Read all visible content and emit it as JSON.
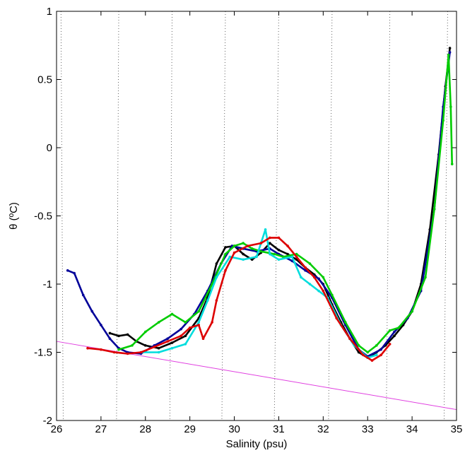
{
  "chart_data": {
    "type": "scatter",
    "title": "",
    "xlabel": "Salinity (psu)",
    "ylabel": "θ (ºC)",
    "xlim": [
      26,
      35
    ],
    "ylim": [
      -2,
      1
    ],
    "grid": "none",
    "x_ticks": [
      26,
      27,
      28,
      29,
      30,
      31,
      32,
      33,
      34,
      35
    ],
    "x_tick_labels": [
      "26",
      "27",
      "28",
      "29",
      "30",
      "31",
      "32",
      "33",
      "34",
      "35"
    ],
    "y_ticks": [
      -2,
      -1.5,
      -1,
      -0.5,
      0,
      0.5,
      1
    ],
    "y_tick_labels": [
      "-2",
      "-1.5",
      "-1",
      "-0.5",
      "0",
      "0.5",
      "1"
    ],
    "freezing_line": {
      "color": "#e040e0",
      "points": [
        [
          26,
          -1.42
        ],
        [
          35,
          -1.92
        ]
      ]
    },
    "isopycnals": {
      "style": "dotted",
      "color": "#555555",
      "lines": [
        [
          [
            26.1,
            1.0
          ],
          [
            26.15,
            -2.0
          ]
        ],
        [
          [
            27.4,
            1.0
          ],
          [
            27.35,
            -2.0
          ]
        ],
        [
          [
            28.6,
            1.0
          ],
          [
            28.55,
            -2.0
          ]
        ],
        [
          [
            29.8,
            1.0
          ],
          [
            29.72,
            -2.0
          ]
        ],
        [
          [
            31.0,
            1.0
          ],
          [
            30.9,
            -2.0
          ]
        ],
        [
          [
            32.2,
            1.0
          ],
          [
            32.12,
            -2.0
          ]
        ],
        [
          [
            33.5,
            1.0
          ],
          [
            33.42,
            -2.0
          ]
        ],
        [
          [
            34.8,
            1.0
          ],
          [
            34.72,
            -2.0
          ]
        ]
      ]
    },
    "series": [
      {
        "color": "#000000",
        "points": [
          [
            27.2,
            -1.36
          ],
          [
            27.4,
            -1.38
          ],
          [
            27.6,
            -1.37
          ],
          [
            27.8,
            -1.42
          ],
          [
            28.0,
            -1.45
          ],
          [
            28.3,
            -1.47
          ],
          [
            28.6,
            -1.43
          ],
          [
            28.9,
            -1.38
          ],
          [
            29.2,
            -1.25
          ],
          [
            29.4,
            -1.1
          ],
          [
            29.6,
            -0.85
          ],
          [
            29.8,
            -0.73
          ],
          [
            30.0,
            -0.72
          ],
          [
            30.2,
            -0.78
          ],
          [
            30.4,
            -0.82
          ],
          [
            30.6,
            -0.77
          ],
          [
            30.8,
            -0.7
          ],
          [
            31.0,
            -0.75
          ],
          [
            31.2,
            -0.78
          ],
          [
            31.4,
            -0.82
          ],
          [
            31.6,
            -0.88
          ],
          [
            31.8,
            -0.93
          ],
          [
            32.0,
            -1.0
          ],
          [
            32.2,
            -1.15
          ],
          [
            32.4,
            -1.28
          ],
          [
            32.6,
            -1.4
          ],
          [
            32.8,
            -1.5
          ],
          [
            33.0,
            -1.54
          ],
          [
            33.2,
            -1.5
          ],
          [
            33.4,
            -1.45
          ],
          [
            33.6,
            -1.38
          ],
          [
            33.8,
            -1.3
          ],
          [
            34.0,
            -1.2
          ],
          [
            34.2,
            -1.0
          ],
          [
            34.4,
            -0.6
          ],
          [
            34.6,
            -0.05
          ],
          [
            34.75,
            0.45
          ],
          [
            34.85,
            0.73
          ]
        ]
      },
      {
        "color": "#000099",
        "points": [
          [
            26.25,
            -0.9
          ],
          [
            26.4,
            -0.92
          ],
          [
            26.6,
            -1.08
          ],
          [
            26.8,
            -1.2
          ],
          [
            27.0,
            -1.3
          ],
          [
            27.2,
            -1.4
          ],
          [
            27.4,
            -1.47
          ],
          [
            27.6,
            -1.5
          ],
          [
            27.9,
            -1.51
          ],
          [
            28.2,
            -1.45
          ],
          [
            28.5,
            -1.4
          ],
          [
            28.8,
            -1.33
          ],
          [
            29.1,
            -1.22
          ],
          [
            29.4,
            -1.05
          ],
          [
            29.7,
            -0.85
          ],
          [
            29.95,
            -0.72
          ],
          [
            30.2,
            -0.74
          ],
          [
            30.5,
            -0.76
          ],
          [
            30.8,
            -0.74
          ],
          [
            31.0,
            -0.78
          ],
          [
            31.3,
            -0.83
          ],
          [
            31.6,
            -0.9
          ],
          [
            31.9,
            -0.96
          ],
          [
            32.2,
            -1.1
          ],
          [
            32.5,
            -1.3
          ],
          [
            32.8,
            -1.48
          ],
          [
            33.0,
            -1.53
          ],
          [
            33.3,
            -1.48
          ],
          [
            33.6,
            -1.35
          ],
          [
            33.9,
            -1.25
          ],
          [
            34.2,
            -1.05
          ],
          [
            34.5,
            -0.45
          ],
          [
            34.7,
            0.3
          ],
          [
            34.85,
            0.7
          ]
        ]
      },
      {
        "color": "#00cc00",
        "points": [
          [
            27.4,
            -1.48
          ],
          [
            27.7,
            -1.45
          ],
          [
            28.0,
            -1.35
          ],
          [
            28.3,
            -1.28
          ],
          [
            28.6,
            -1.22
          ],
          [
            28.9,
            -1.28
          ],
          [
            29.2,
            -1.2
          ],
          [
            29.5,
            -1.0
          ],
          [
            29.8,
            -0.78
          ],
          [
            30.0,
            -0.72
          ],
          [
            30.2,
            -0.7
          ],
          [
            30.4,
            -0.74
          ],
          [
            30.6,
            -0.76
          ],
          [
            30.9,
            -0.78
          ],
          [
            31.1,
            -0.8
          ],
          [
            31.4,
            -0.78
          ],
          [
            31.7,
            -0.85
          ],
          [
            32.0,
            -0.95
          ],
          [
            32.2,
            -1.08
          ],
          [
            32.5,
            -1.28
          ],
          [
            32.8,
            -1.45
          ],
          [
            33.0,
            -1.5
          ],
          [
            33.2,
            -1.45
          ],
          [
            33.5,
            -1.34
          ],
          [
            33.7,
            -1.32
          ],
          [
            34.0,
            -1.2
          ],
          [
            34.3,
            -0.95
          ],
          [
            34.5,
            -0.45
          ],
          [
            34.7,
            0.2
          ],
          [
            34.82,
            0.68
          ],
          [
            34.87,
            0.3
          ],
          [
            34.9,
            -0.12
          ]
        ]
      },
      {
        "color": "#00dddd",
        "points": [
          [
            27.9,
            -1.5
          ],
          [
            28.3,
            -1.5
          ],
          [
            28.6,
            -1.47
          ],
          [
            28.9,
            -1.44
          ],
          [
            29.2,
            -1.28
          ],
          [
            29.4,
            -1.12
          ],
          [
            29.6,
            -0.95
          ],
          [
            29.9,
            -0.8
          ],
          [
            30.2,
            -0.82
          ],
          [
            30.5,
            -0.8
          ],
          [
            30.7,
            -0.6
          ],
          [
            30.8,
            -0.78
          ],
          [
            31.0,
            -0.82
          ],
          [
            31.3,
            -0.8
          ],
          [
            31.5,
            -0.95
          ],
          [
            31.7,
            -1.0
          ],
          [
            31.9,
            -1.05
          ],
          [
            32.1,
            -1.1
          ],
          [
            32.4,
            -1.3
          ],
          [
            32.7,
            -1.45
          ],
          [
            33.0,
            -1.54
          ],
          [
            33.2,
            -1.52
          ]
        ]
      },
      {
        "color": "#dd0000",
        "points": [
          [
            26.7,
            -1.47
          ],
          [
            27.0,
            -1.48
          ],
          [
            27.3,
            -1.5
          ],
          [
            27.6,
            -1.51
          ],
          [
            27.9,
            -1.5
          ],
          [
            28.2,
            -1.46
          ],
          [
            28.5,
            -1.42
          ],
          [
            28.8,
            -1.38
          ],
          [
            29.0,
            -1.32
          ],
          [
            29.2,
            -1.3
          ],
          [
            29.3,
            -1.4
          ],
          [
            29.5,
            -1.28
          ],
          [
            29.6,
            -1.12
          ],
          [
            29.8,
            -0.9
          ],
          [
            30.0,
            -0.77
          ],
          [
            30.3,
            -0.72
          ],
          [
            30.6,
            -0.7
          ],
          [
            30.8,
            -0.66
          ],
          [
            31.0,
            -0.66
          ],
          [
            31.2,
            -0.72
          ],
          [
            31.4,
            -0.8
          ],
          [
            31.6,
            -0.88
          ],
          [
            31.8,
            -0.95
          ],
          [
            32.0,
            -1.05
          ],
          [
            32.3,
            -1.25
          ],
          [
            32.6,
            -1.4
          ],
          [
            32.9,
            -1.52
          ],
          [
            33.1,
            -1.56
          ],
          [
            33.3,
            -1.52
          ],
          [
            33.5,
            -1.44
          ]
        ]
      }
    ]
  }
}
